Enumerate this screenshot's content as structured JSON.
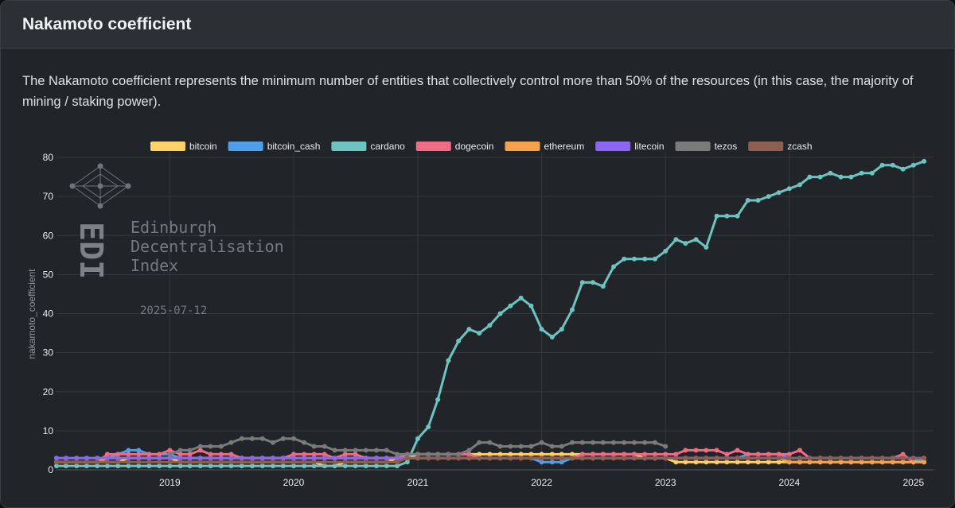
{
  "card": {
    "title": "Nakamoto coefficient",
    "description": "The Nakamoto coefficient represents the minimum number of entities that collectively control more than 50% of the resources (in this case, the majority of mining / staking power)."
  },
  "watermark": {
    "logo_letters": "EDI",
    "lines": [
      "Edinburgh",
      "Decentralisation",
      "Index"
    ],
    "date": "2025-07-12"
  },
  "chart_data": {
    "type": "line",
    "title": "",
    "xlabel": "",
    "ylabel": "nakamoto_coefficient",
    "xlim": [
      "2018-02-01",
      "2025-03-01"
    ],
    "ylim": [
      0,
      80
    ],
    "x_ticks": [
      "2019",
      "2020",
      "2021",
      "2022",
      "2023",
      "2024",
      "2025"
    ],
    "y_ticks": [
      0,
      10,
      20,
      30,
      40,
      50,
      60,
      70,
      80
    ],
    "grid": true,
    "legend_position": "top",
    "x": [
      "2018-02",
      "2018-03",
      "2018-04",
      "2018-05",
      "2018-06",
      "2018-07",
      "2018-08",
      "2018-09",
      "2018-10",
      "2018-11",
      "2018-12",
      "2019-01",
      "2019-02",
      "2019-03",
      "2019-04",
      "2019-05",
      "2019-06",
      "2019-07",
      "2019-08",
      "2019-09",
      "2019-10",
      "2019-11",
      "2019-12",
      "2020-01",
      "2020-02",
      "2020-03",
      "2020-04",
      "2020-05",
      "2020-06",
      "2020-07",
      "2020-08",
      "2020-09",
      "2020-10",
      "2020-11",
      "2020-12",
      "2021-01",
      "2021-02",
      "2021-03",
      "2021-04",
      "2021-05",
      "2021-06",
      "2021-07",
      "2021-08",
      "2021-09",
      "2021-10",
      "2021-11",
      "2021-12",
      "2022-01",
      "2022-02",
      "2022-03",
      "2022-04",
      "2022-05",
      "2022-06",
      "2022-07",
      "2022-08",
      "2022-09",
      "2022-10",
      "2022-11",
      "2022-12",
      "2023-01",
      "2023-02",
      "2023-03",
      "2023-04",
      "2023-05",
      "2023-06",
      "2023-07",
      "2023-08",
      "2023-09",
      "2023-10",
      "2023-11",
      "2023-12",
      "2024-01",
      "2024-02",
      "2024-03",
      "2024-04",
      "2024-05",
      "2024-06",
      "2024-07",
      "2024-08",
      "2024-09",
      "2024-10",
      "2024-11",
      "2024-12",
      "2025-01",
      "2025-02"
    ],
    "series": [
      {
        "name": "bitcoin",
        "color": "#ffd166",
        "values": [
          2,
          2,
          2,
          2,
          2,
          2,
          2,
          3,
          3,
          3,
          3,
          3,
          2,
          2,
          2,
          2,
          2,
          2,
          2,
          2,
          2,
          2,
          2,
          2,
          2,
          2,
          1,
          1,
          2,
          2,
          2,
          2,
          2,
          3,
          3,
          4,
          4,
          4,
          4,
          4,
          4,
          4,
          4,
          4,
          4,
          4,
          4,
          4,
          4,
          4,
          4,
          4,
          4,
          4,
          4,
          4,
          4,
          3,
          3,
          3,
          2,
          2,
          2,
          2,
          2,
          2,
          2,
          2,
          2,
          2,
          2,
          2,
          2,
          2,
          2,
          2,
          2,
          2,
          2,
          2,
          2,
          2,
          2,
          2,
          3
        ]
      },
      {
        "name": "bitcoin_cash",
        "color": "#4e9ee8",
        "values": [
          3,
          3,
          3,
          3,
          3,
          3,
          4,
          5,
          5,
          4,
          4,
          4,
          3,
          3,
          3,
          3,
          3,
          3,
          3,
          3,
          3,
          3,
          3,
          3,
          3,
          3,
          3,
          3,
          3,
          3,
          3,
          3,
          3,
          3,
          3,
          3,
          3,
          3,
          3,
          3,
          3,
          3,
          3,
          3,
          3,
          3,
          3,
          2,
          2,
          2,
          3,
          3,
          3,
          3,
          3,
          3,
          3,
          3,
          3,
          3,
          3,
          3,
          3,
          3,
          3,
          3,
          3,
          4,
          4,
          4,
          4,
          3,
          3,
          3,
          3,
          3,
          3,
          3,
          3,
          3,
          3,
          3,
          3,
          3,
          2
        ]
      },
      {
        "name": "cardano",
        "color": "#6cc3c0",
        "values": [
          1,
          1,
          1,
          1,
          1,
          1,
          1,
          1,
          1,
          1,
          1,
          1,
          1,
          1,
          1,
          1,
          1,
          1,
          1,
          1,
          1,
          1,
          1,
          1,
          1,
          1,
          1,
          1,
          1,
          1,
          1,
          1,
          1,
          1,
          2,
          8,
          11,
          18,
          28,
          33,
          36,
          35,
          37,
          40,
          42,
          44,
          42,
          36,
          34,
          36,
          41,
          48,
          48,
          47,
          52,
          54,
          54,
          54,
          54,
          56,
          59,
          58,
          59,
          57,
          65,
          65,
          65,
          69,
          69,
          70,
          71,
          72,
          73,
          75,
          75,
          76,
          75,
          75,
          76,
          76,
          78,
          78,
          77,
          78,
          79
        ]
      },
      {
        "name": "dogecoin",
        "color": "#ef6b86",
        "values": [
          2,
          2,
          2,
          2,
          2,
          4,
          4,
          4,
          4,
          4,
          4,
          5,
          4,
          4,
          5,
          4,
          4,
          4,
          3,
          3,
          3,
          3,
          3,
          4,
          4,
          4,
          4,
          3,
          4,
          4,
          3,
          3,
          3,
          3,
          4,
          4,
          4,
          4,
          4,
          4,
          4,
          3,
          3,
          3,
          3,
          3,
          3,
          3,
          3,
          3,
          3,
          4,
          4,
          4,
          4,
          4,
          4,
          4,
          4,
          4,
          4,
          5,
          5,
          5,
          5,
          4,
          5,
          4,
          4,
          4,
          4,
          4,
          5,
          3,
          3,
          3,
          3,
          3,
          3,
          3,
          3,
          3,
          4,
          2,
          2
        ]
      },
      {
        "name": "ethereum",
        "color": "#f5a24b",
        "values": [
          2,
          2,
          2,
          2,
          2,
          3,
          3,
          3,
          3,
          3,
          3,
          3,
          3,
          3,
          3,
          3,
          3,
          3,
          3,
          3,
          3,
          3,
          3,
          3,
          3,
          3,
          3,
          3,
          3,
          3,
          3,
          3,
          3,
          3,
          3,
          3,
          3,
          3,
          3,
          3,
          3,
          3,
          3,
          3,
          3,
          3,
          3,
          3,
          3,
          3,
          3,
          3,
          3,
          3,
          3,
          3,
          3,
          3,
          3,
          3,
          3,
          3,
          3,
          3,
          3,
          3,
          3,
          3,
          3,
          3,
          3,
          2,
          2,
          2,
          2,
          2,
          2,
          2,
          2,
          2,
          2,
          2,
          2,
          2,
          2
        ]
      },
      {
        "name": "litecoin",
        "color": "#8b66f0",
        "values": [
          3,
          3,
          3,
          3,
          3,
          3,
          3,
          3,
          3,
          3,
          3,
          3,
          3,
          3,
          3,
          3,
          3,
          3,
          3,
          3,
          3,
          3,
          3,
          3,
          3,
          3,
          3,
          3,
          3,
          3,
          3,
          3,
          3,
          3,
          3,
          3,
          3,
          3,
          3,
          3,
          3,
          3,
          3,
          3,
          3,
          3,
          3,
          3,
          3,
          3,
          3,
          3,
          3,
          3,
          3,
          3,
          3,
          3,
          3,
          3,
          3,
          3,
          3,
          3,
          3,
          3,
          3,
          3,
          3,
          3,
          3,
          3,
          3,
          3,
          3,
          3,
          3,
          3,
          3,
          3,
          3,
          3,
          3,
          3,
          3
        ]
      },
      {
        "name": "tezos",
        "color": "#7b7b7b",
        "values": [
          null,
          null,
          null,
          null,
          null,
          null,
          null,
          null,
          null,
          null,
          null,
          4,
          5,
          5,
          6,
          6,
          6,
          7,
          8,
          8,
          8,
          7,
          8,
          8,
          7,
          6,
          6,
          5,
          5,
          5,
          5,
          5,
          5,
          4,
          4,
          4,
          4,
          4,
          4,
          4,
          5,
          7,
          7,
          6,
          6,
          6,
          6,
          7,
          6,
          6,
          7,
          7,
          7,
          7,
          7,
          7,
          7,
          7,
          7,
          6,
          null,
          null,
          null,
          null,
          null,
          null,
          null,
          null,
          null,
          null,
          null,
          null,
          null,
          null,
          null,
          null,
          null,
          null,
          null,
          null,
          null,
          null,
          null,
          null,
          null
        ]
      },
      {
        "name": "zcash",
        "color": "#8d5f50",
        "values": [
          2,
          2,
          2,
          2,
          2,
          2,
          2,
          2,
          2,
          2,
          2,
          2,
          2,
          2,
          2,
          2,
          2,
          2,
          2,
          2,
          2,
          2,
          2,
          2,
          2,
          2,
          2,
          2,
          2,
          2,
          2,
          2,
          2,
          2,
          3,
          3,
          3,
          3,
          3,
          3,
          3,
          3,
          3,
          3,
          3,
          3,
          3,
          3,
          3,
          3,
          3,
          3,
          3,
          3,
          3,
          3,
          3,
          3,
          3,
          3,
          3,
          3,
          3,
          3,
          3,
          3,
          3,
          3,
          3,
          3,
          3,
          3,
          3,
          3,
          3,
          3,
          3,
          3,
          3,
          3,
          3,
          3,
          3,
          3,
          3
        ]
      }
    ]
  }
}
